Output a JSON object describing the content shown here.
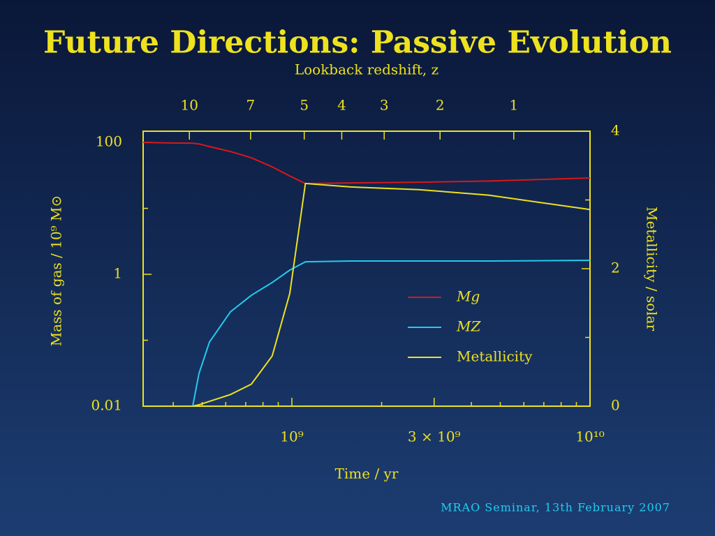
{
  "title": "Future Directions: Passive Evolution",
  "footer": "MRAO Seminar, 13th February 2007",
  "chart_data": {
    "type": "line",
    "x2_label": "Lookback redshift, z",
    "x_label": "Time / yr",
    "y_label": "Mass of gas / 10⁹ M⊙",
    "y2_label": "Metallicity / solar",
    "x": [
      317000000.0,
      465000000.0,
      488000000.0,
      529000000.0,
      622000000.0,
      731000000.0,
      859000000.0,
      984000000.0,
      1110000000.0,
      1560000000.0,
      2670000000.0,
      4570000000.0,
      10000000000.0
    ],
    "series": [
      {
        "name": "Mg",
        "color": "#d81818",
        "values": [
          100,
          97,
          95,
          86.5,
          72.8,
          58.5,
          42.6,
          31,
          23.8,
          24.3,
          24.9,
          26,
          28.9
        ]
      },
      {
        "name": "MZ",
        "color": "#22ccee",
        "values": [
          null,
          0.01,
          0.0314,
          0.094,
          0.27,
          0.48,
          0.75,
          1.16,
          1.55,
          1.59,
          1.59,
          1.59,
          1.63
        ]
      },
      {
        "name": "Metallicity",
        "color": "#eee21e",
        "axis": "y2",
        "values": [
          null,
          0,
          0.02,
          0.07,
          0.17,
          0.32,
          0.73,
          1.64,
          3.24,
          3.19,
          3.15,
          3.07,
          2.86
        ]
      }
    ],
    "xlog": true,
    "xlim": [
      317000000.0,
      10000000000.0
    ],
    "xticks": [
      {
        "value": 1000000000.0,
        "label": "10⁹"
      },
      {
        "value": 3000000000.0,
        "label": "3 × 10⁹"
      },
      {
        "value": 10000000000.0,
        "label": "10¹⁰"
      }
    ],
    "xminor": [
      400000000.0,
      500000000.0,
      600000000.0,
      700000000.0,
      800000000.0,
      900000000.0,
      2000000000.0,
      4000000000.0,
      5000000000.0,
      6000000000.0,
      7000000000.0,
      8000000000.0,
      9000000000.0
    ],
    "x2ticks": [
      {
        "value": 453000000.0,
        "label": "10"
      },
      {
        "value": 727000000.0,
        "label": "7"
      },
      {
        "value": 1100000000.0,
        "label": "5"
      },
      {
        "value": 1470000000.0,
        "label": "4"
      },
      {
        "value": 2040000000.0,
        "label": "3"
      },
      {
        "value": 3140000000.0,
        "label": "2"
      },
      {
        "value": 5550000000.0,
        "label": "1"
      }
    ],
    "ylog": true,
    "ylim": [
      0.01,
      148
    ],
    "yticks": [
      0.01,
      1,
      100
    ],
    "yminor": [
      0.1,
      10
    ],
    "y2lim": [
      0,
      4
    ],
    "y2ticks": [
      0,
      2,
      4
    ],
    "y2minor": [
      1,
      3
    ],
    "axis_color": "#eee21e",
    "legend": "lower right"
  }
}
